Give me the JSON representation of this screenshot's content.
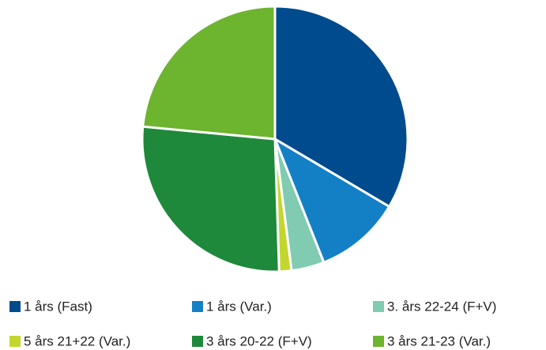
{
  "chart_data": {
    "type": "pie",
    "categories": [
      "1 års (Fast)",
      "1 års (Var.)",
      "3. års 22-24 (F+V)",
      "5 års 21+22 (Var.)",
      "3 års 20-22 (F+V)",
      "3 års 21-23 (Var.)"
    ],
    "values": [
      33.5,
      10.5,
      4,
      1.5,
      27,
      23.5
    ],
    "colors": [
      "#004b8d",
      "#1380c6",
      "#80cbb1",
      "#c2d62e",
      "#1e893a",
      "#6db42f"
    ]
  }
}
